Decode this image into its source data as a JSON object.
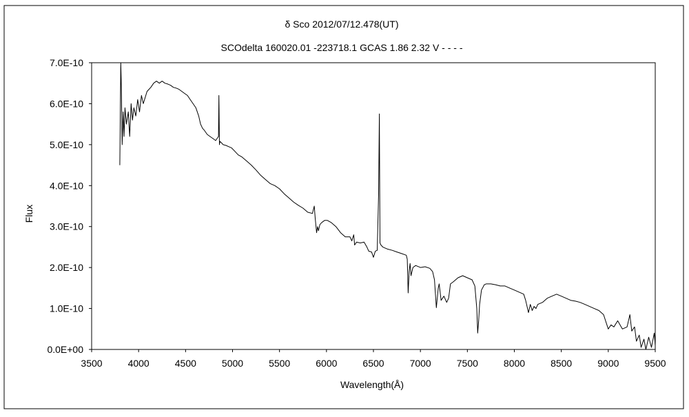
{
  "chart_data": {
    "type": "line",
    "title": "δ  Sco    2012/07/12.478(UT)",
    "subtitle": "SCOdelta 160020.01 -223718.1 GCAS 1.86 2.32 V - - - -",
    "xlabel": "Wavelength(Å)",
    "ylabel": "Flux",
    "xlim": [
      3500,
      9500
    ],
    "ylim": [
      0,
      7e-10
    ],
    "x_ticks": [
      "3500",
      "4000",
      "4500",
      "5000",
      "5500",
      "6000",
      "6500",
      "7000",
      "7500",
      "8000",
      "8500",
      "9000",
      "9500"
    ],
    "y_ticks": [
      "0.0E+00",
      "1.0E-10",
      "2.0E-10",
      "3.0E-10",
      "4.0E-10",
      "5.0E-10",
      "6.0E-10",
      "7.0E-10"
    ],
    "grid": false,
    "legend": "none",
    "line_color": "#000000",
    "series": [
      {
        "x": [
          3800,
          3810,
          3815,
          3825,
          3835,
          3845,
          3855,
          3870,
          3890,
          3905,
          3920,
          3935,
          3950,
          3970,
          3990,
          4010,
          4030,
          4050,
          4070,
          4090,
          4110,
          4130,
          4160,
          4190,
          4220,
          4250,
          4280,
          4310,
          4340,
          4370,
          4400,
          4430,
          4460,
          4490,
          4520,
          4550,
          4580,
          4610,
          4640,
          4660,
          4680,
          4700,
          4730,
          4760,
          4790,
          4820,
          4850,
          4855,
          4861,
          4866,
          4880,
          4900,
          4930,
          4960,
          4990,
          5020,
          5060,
          5100,
          5150,
          5200,
          5250,
          5300,
          5350,
          5400,
          5450,
          5500,
          5550,
          5600,
          5650,
          5700,
          5750,
          5800,
          5850,
          5870,
          5880,
          5895,
          5905,
          5915,
          5930,
          5950,
          5980,
          6010,
          6050,
          6100,
          6150,
          6200,
          6250,
          6270,
          6290,
          6300,
          6320,
          6360,
          6400,
          6430,
          6450,
          6480,
          6500,
          6520,
          6540,
          6555,
          6563,
          6570,
          6580,
          6600,
          6650,
          6700,
          6750,
          6800,
          6850,
          6860,
          6870,
          6880,
          6890,
          6900,
          6920,
          6950,
          7000,
          7050,
          7100,
          7130,
          7150,
          7170,
          7190,
          7200,
          7220,
          7250,
          7280,
          7300,
          7320,
          7350,
          7400,
          7450,
          7500,
          7550,
          7580,
          7600,
          7610,
          7620,
          7630,
          7650,
          7680,
          7700,
          7750,
          7800,
          7850,
          7900,
          7950,
          8000,
          8050,
          8100,
          8120,
          8150,
          8170,
          8190,
          8210,
          8230,
          8250,
          8300,
          8350,
          8400,
          8450,
          8500,
          8550,
          8600,
          8650,
          8700,
          8750,
          8800,
          8850,
          8900,
          8950,
          9000,
          9030,
          9060,
          9100,
          9150,
          9200,
          9230,
          9250,
          9280,
          9300,
          9330,
          9350,
          9380,
          9400,
          9430,
          9460,
          9490,
          9500
        ],
        "values": [
          4.5e-10,
          7e-10,
          6.6e-10,
          5e-10,
          5.8e-10,
          5.2e-10,
          5.9e-10,
          5.5e-10,
          5.8e-10,
          5.2e-10,
          6e-10,
          5.6e-10,
          5.9e-10,
          5.7e-10,
          6.1e-10,
          5.8e-10,
          6.2e-10,
          6e-10,
          6.15e-10,
          6.3e-10,
          6.35e-10,
          6.4e-10,
          6.5e-10,
          6.55e-10,
          6.5e-10,
          6.55e-10,
          6.5e-10,
          6.48e-10,
          6.45e-10,
          6.4e-10,
          6.38e-10,
          6.35e-10,
          6.3e-10,
          6.25e-10,
          6.2e-10,
          6.1e-10,
          6e-10,
          5.9e-10,
          5.7e-10,
          5.5e-10,
          5.4e-10,
          5.35e-10,
          5.25e-10,
          5.2e-10,
          5.15e-10,
          5.1e-10,
          5.2e-10,
          6.2e-10,
          5e-10,
          5.08e-10,
          5.05e-10,
          5e-10,
          4.98e-10,
          4.95e-10,
          4.92e-10,
          4.85e-10,
          4.75e-10,
          4.7e-10,
          4.6e-10,
          4.5e-10,
          4.38e-10,
          4.25e-10,
          4.15e-10,
          4.05e-10,
          4e-10,
          3.92e-10,
          3.8e-10,
          3.7e-10,
          3.6e-10,
          3.52e-10,
          3.45e-10,
          3.35e-10,
          3.32e-10,
          3.5e-10,
          3.2e-10,
          2.85e-10,
          3e-10,
          2.9e-10,
          3.05e-10,
          3.1e-10,
          3.15e-10,
          3.15e-10,
          3.1e-10,
          3e-10,
          2.85e-10,
          2.75e-10,
          2.75e-10,
          2.65e-10,
          2.8e-10,
          2.55e-10,
          2.62e-10,
          2.6e-10,
          2.62e-10,
          2.5e-10,
          2.4e-10,
          2.38e-10,
          2.25e-10,
          2.4e-10,
          2.42e-10,
          3.8e-10,
          5.75e-10,
          2.6e-10,
          2.55e-10,
          2.5e-10,
          2.45e-10,
          2.42e-10,
          2.38e-10,
          2.34e-10,
          2.3e-10,
          2.2e-10,
          1.38e-10,
          1.9e-10,
          2.1e-10,
          1.8e-10,
          2e-10,
          2.05e-10,
          2e-10,
          2.02e-10,
          1.98e-10,
          1.9e-10,
          1.7e-10,
          1.02e-10,
          1.5e-10,
          1.6e-10,
          1.2e-10,
          1.3e-10,
          1.15e-10,
          1.25e-10,
          1.6e-10,
          1.65e-10,
          1.75e-10,
          1.8e-10,
          1.75e-10,
          1.7e-10,
          1.55e-10,
          1e-10,
          4e-11,
          7e-11,
          1.1e-10,
          1.45e-10,
          1.58e-10,
          1.6e-10,
          1.6e-10,
          1.58e-10,
          1.55e-10,
          1.55e-10,
          1.5e-10,
          1.45e-10,
          1.4e-10,
          1.35e-10,
          1.2e-10,
          9e-11,
          1.1e-10,
          9.5e-11,
          1.05e-10,
          1e-10,
          1.1e-10,
          1.15e-10,
          1.25e-10,
          1.3e-10,
          1.35e-10,
          1.3e-10,
          1.25e-10,
          1.2e-10,
          1.18e-10,
          1.15e-10,
          1.1e-10,
          1.05e-10,
          1e-10,
          9.5e-11,
          8.5e-11,
          5e-11,
          6e-11,
          5.5e-11,
          7e-11,
          5e-11,
          5.5e-11,
          8.5e-11,
          4.5e-11,
          5.5e-11,
          2e-11,
          3.5e-11,
          5e-12,
          2.5e-11,
          0.0,
          3e-11,
          5e-12,
          4e-11,
          1e-11
        ]
      }
    ]
  }
}
